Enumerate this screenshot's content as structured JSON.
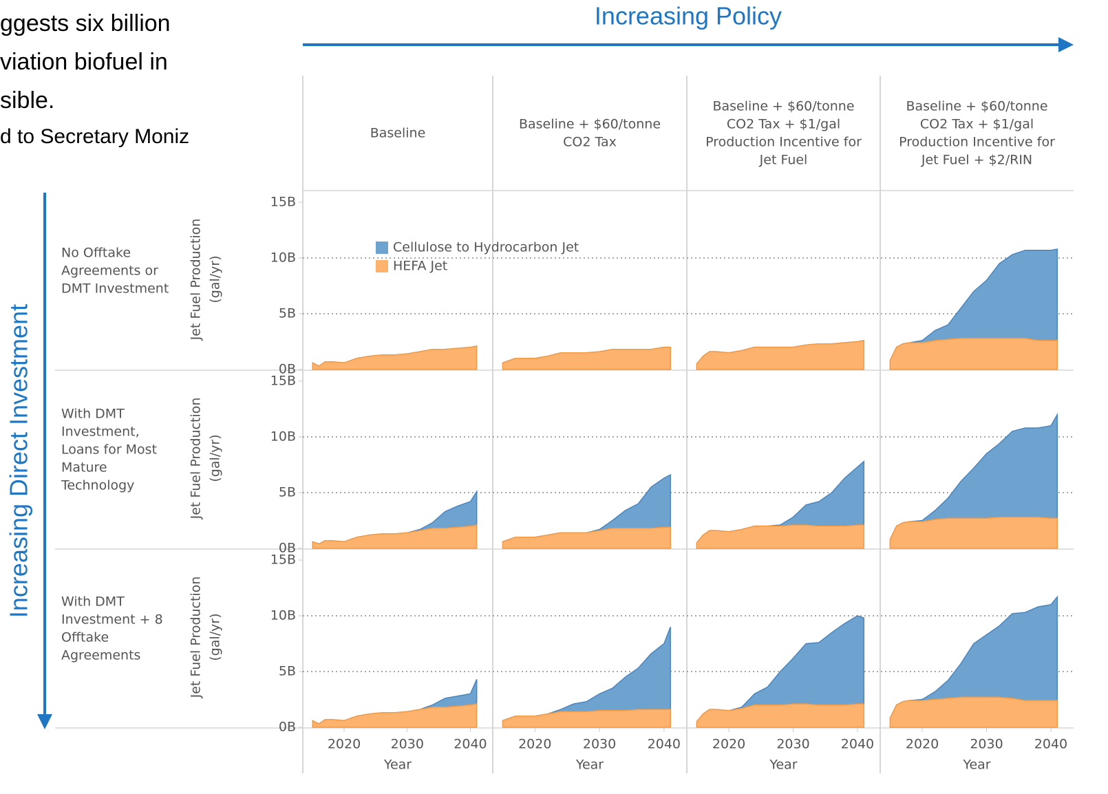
{
  "intro_lines": [
    "ggests six billion",
    "viation biofuel in",
    "sible.",
    "d to Secretary Moniz"
  ],
  "policy_label": "Increasing Policy",
  "investment_label": "Increasing Direct Investment",
  "chart_data": {
    "type": "area",
    "stacked": true,
    "columns": [
      [
        "Baseline"
      ],
      [
        "Baseline + $60/tonne",
        "CO2 Tax"
      ],
      [
        "Baseline + $60/tonne",
        "CO2 Tax + $1/gal",
        "Production Incentive for",
        "Jet Fuel"
      ],
      [
        "Baseline + $60/tonne",
        "CO2 Tax + $1/gal",
        "Production Incentive for",
        "Jet Fuel + $2/RIN"
      ]
    ],
    "rows": [
      [
        "No Offtake",
        "Agreements or",
        "DMT Investment"
      ],
      [
        "With DMT",
        "Investment,",
        "Loans for Most",
        "Mature",
        "Technology"
      ],
      [
        "With DMT",
        "Investment + 8",
        "Offtake",
        "Agreements"
      ]
    ],
    "ylabel": [
      "Jet Fuel Production",
      "(gal/yr)"
    ],
    "xlabel": "Year",
    "xlim": [
      2014,
      2043
    ],
    "xticks": [
      2020,
      2030,
      2040
    ],
    "ylim": [
      0,
      15
    ],
    "yticks": [
      {
        "value": 0,
        "label": "0B"
      },
      {
        "value": 5,
        "label": "5B"
      },
      {
        "value": 10,
        "label": "10B"
      },
      {
        "value": 15,
        "label": "15B"
      }
    ],
    "grid": true,
    "series": [
      {
        "name": "Cellulose to Hydrocarbon Jet",
        "color": "#6fa3cf"
      },
      {
        "name": "HEFA Jet",
        "color": "#fdb26e"
      }
    ],
    "x": [
      2015,
      2016,
      2017,
      2018,
      2020,
      2022,
      2024,
      2026,
      2028,
      2030,
      2032,
      2034,
      2036,
      2038,
      2040,
      2041
    ],
    "panels": [
      [
        [
          [
            0,
            0,
            0,
            0,
            0,
            0,
            0,
            0,
            0,
            0,
            0,
            0,
            0,
            0,
            0,
            0
          ],
          [
            0.6,
            0.3,
            0.7,
            0.7,
            0.6,
            1.0,
            1.2,
            1.3,
            1.3,
            1.4,
            1.6,
            1.8,
            1.8,
            1.9,
            2.0,
            2.1
          ]
        ],
        [
          [
            0,
            0,
            0,
            0,
            0,
            0,
            0,
            0,
            0,
            0,
            0,
            0,
            0,
            0,
            0,
            0
          ],
          [
            0.6,
            0.8,
            1.0,
            1.0,
            1.0,
            1.2,
            1.5,
            1.5,
            1.5,
            1.6,
            1.8,
            1.8,
            1.8,
            1.8,
            2.0,
            2.0
          ]
        ],
        [
          [
            0,
            0,
            0,
            0,
            0,
            0,
            0,
            0,
            0,
            0,
            0,
            0,
            0,
            0,
            0,
            0
          ],
          [
            0.5,
            1.2,
            1.6,
            1.6,
            1.5,
            1.7,
            2.0,
            2.0,
            2.0,
            2.0,
            2.2,
            2.3,
            2.3,
            2.4,
            2.5,
            2.6
          ]
        ],
        [
          [
            0,
            0,
            0,
            0,
            0.2,
            0.9,
            1.3,
            2.7,
            4.2,
            5.2,
            6.7,
            7.5,
            7.9,
            8.1,
            8.1,
            8.2
          ],
          [
            0.8,
            2.0,
            2.3,
            2.4,
            2.4,
            2.6,
            2.7,
            2.8,
            2.8,
            2.8,
            2.8,
            2.8,
            2.8,
            2.6,
            2.6,
            2.6
          ]
        ]
      ],
      [
        [
          [
            0,
            0,
            0,
            0,
            0,
            0,
            0,
            0,
            0,
            0,
            0.1,
            0.5,
            1.5,
            1.9,
            2.2,
            3.0
          ],
          [
            0.6,
            0.4,
            0.7,
            0.7,
            0.6,
            1.0,
            1.2,
            1.3,
            1.3,
            1.4,
            1.6,
            1.8,
            1.8,
            1.9,
            2.0,
            2.1
          ]
        ],
        [
          [
            0,
            0,
            0,
            0,
            0,
            0,
            0,
            0,
            0,
            0.1,
            0.7,
            1.6,
            2.2,
            3.7,
            4.4,
            4.7
          ],
          [
            0.6,
            0.8,
            1.0,
            1.0,
            1.0,
            1.2,
            1.4,
            1.4,
            1.4,
            1.6,
            1.8,
            1.8,
            1.8,
            1.8,
            1.9,
            1.9
          ]
        ],
        [
          [
            0,
            0,
            0,
            0,
            0,
            0,
            0,
            0,
            0.1,
            0.7,
            1.8,
            2.2,
            3.0,
            4.3,
            5.2,
            5.7
          ],
          [
            0.5,
            1.2,
            1.6,
            1.6,
            1.5,
            1.7,
            2.0,
            2.0,
            2.0,
            2.1,
            2.1,
            2.0,
            2.0,
            2.0,
            2.1,
            2.1
          ]
        ],
        [
          [
            0,
            0,
            0,
            0,
            0.1,
            0.8,
            1.8,
            3.3,
            4.5,
            5.8,
            6.6,
            7.7,
            8.0,
            8.0,
            8.3,
            9.3
          ],
          [
            0.8,
            2.0,
            2.3,
            2.4,
            2.4,
            2.6,
            2.7,
            2.7,
            2.7,
            2.7,
            2.8,
            2.8,
            2.8,
            2.8,
            2.7,
            2.7
          ]
        ]
      ],
      [
        [
          [
            0,
            0,
            0,
            0,
            0,
            0,
            0,
            0,
            0,
            0,
            0,
            0.2,
            0.8,
            0.9,
            1.0,
            2.2
          ],
          [
            0.6,
            0.3,
            0.7,
            0.7,
            0.6,
            1.0,
            1.2,
            1.3,
            1.3,
            1.4,
            1.6,
            1.8,
            1.8,
            1.9,
            2.0,
            2.1
          ]
        ],
        [
          [
            0,
            0,
            0,
            0,
            0,
            0,
            0.2,
            0.7,
            0.9,
            1.5,
            2.0,
            3.0,
            3.7,
            5.0,
            5.9,
            7.4
          ],
          [
            0.6,
            0.8,
            1.0,
            1.0,
            1.0,
            1.2,
            1.4,
            1.4,
            1.4,
            1.5,
            1.5,
            1.5,
            1.6,
            1.6,
            1.6,
            1.6
          ]
        ],
        [
          [
            0,
            0,
            0,
            0,
            0,
            0.1,
            1.0,
            1.6,
            3.0,
            4.1,
            5.4,
            5.6,
            6.5,
            7.3,
            7.9,
            7.7
          ],
          [
            0.5,
            1.2,
            1.6,
            1.6,
            1.5,
            1.7,
            2.0,
            2.0,
            2.0,
            2.1,
            2.1,
            2.0,
            2.0,
            2.0,
            2.1,
            2.1
          ]
        ],
        [
          [
            0,
            0,
            0,
            0,
            0.1,
            0.7,
            1.6,
            3.0,
            4.8,
            5.6,
            6.4,
            7.6,
            7.9,
            8.4,
            8.6,
            9.3
          ],
          [
            0.8,
            2.0,
            2.3,
            2.4,
            2.4,
            2.5,
            2.6,
            2.7,
            2.7,
            2.7,
            2.7,
            2.6,
            2.4,
            2.4,
            2.4,
            2.4
          ]
        ]
      ]
    ]
  }
}
